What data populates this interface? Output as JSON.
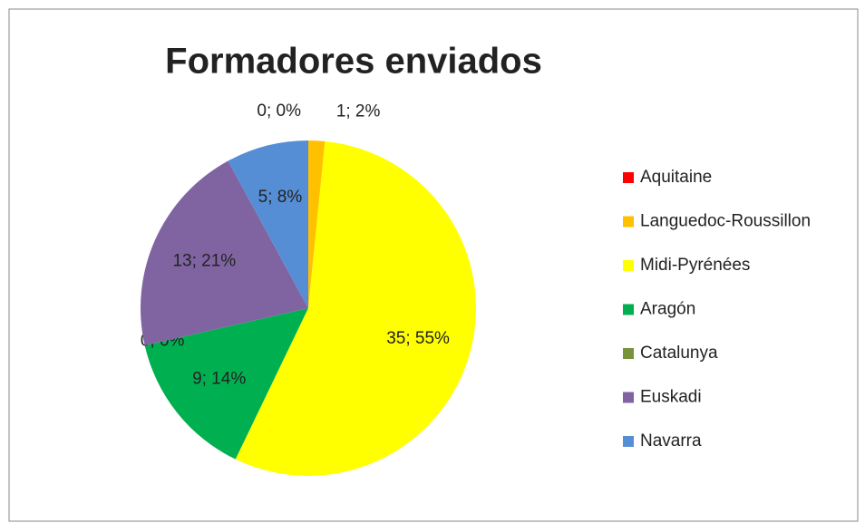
{
  "chart_data": {
    "type": "pie",
    "title": "Formadores enviados",
    "categories": [
      "Aquitaine",
      "Languedoc-Roussillon",
      "Midi-Pyrénées",
      "Aragón",
      "Catalunya",
      "Euskadi",
      "Navarra"
    ],
    "values": [
      0,
      1,
      35,
      9,
      0,
      13,
      5
    ],
    "value_labels": [
      "0; 0%",
      "1; 2%",
      "35; 55%",
      "9; 14%",
      "0; 0%",
      "13; 21%",
      "5; 8%"
    ],
    "colors": [
      "#ff0000",
      "#ffc000",
      "#ffff00",
      "#00b050",
      "#77933c",
      "#8064a2",
      "#558ed5"
    ],
    "legend": "right"
  }
}
